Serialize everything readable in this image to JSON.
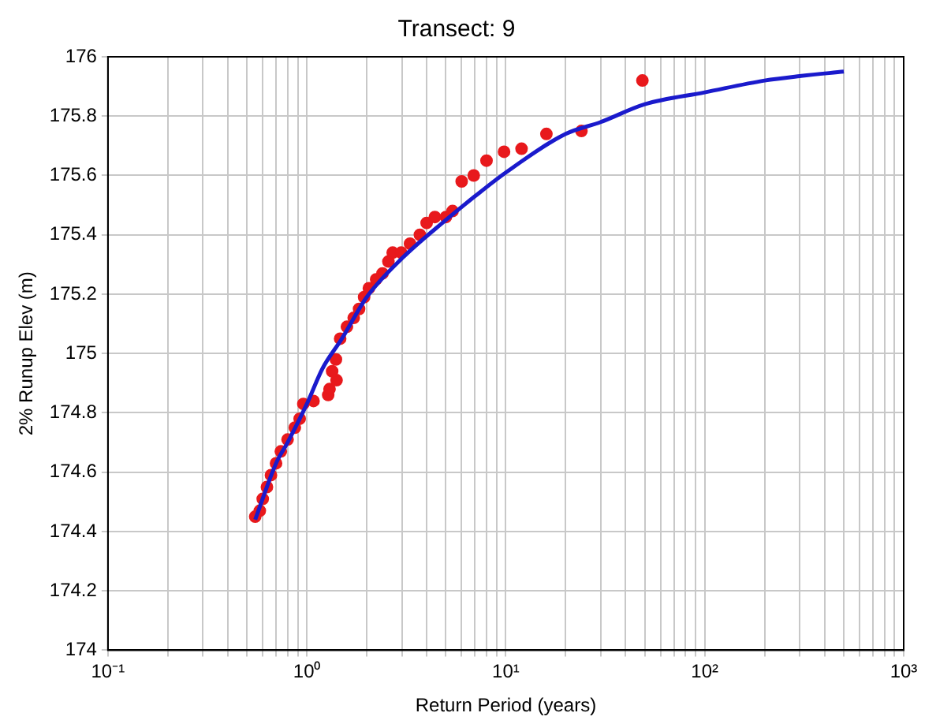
{
  "chart_data": {
    "type": "scatter",
    "title": "Transect: 9",
    "xlabel": "Return Period (years)",
    "ylabel": "2% Runup Elev (m)",
    "log": "x",
    "grid": true,
    "legend": false,
    "marker": "circle",
    "xlim": [
      0.1,
      1000
    ],
    "ylim": [
      174,
      176
    ],
    "xticks": [
      {
        "value": 0.1,
        "label": "10⁻¹"
      },
      {
        "value": 0.2,
        "label": null
      },
      {
        "value": 0.3,
        "label": null
      },
      {
        "value": 0.4,
        "label": null
      },
      {
        "value": 0.5,
        "label": null
      },
      {
        "value": 0.6,
        "label": null
      },
      {
        "value": 0.7,
        "label": null
      },
      {
        "value": 0.8,
        "label": null
      },
      {
        "value": 0.9,
        "label": null
      },
      {
        "value": 1,
        "label": "10⁰"
      },
      {
        "value": 2,
        "label": null
      },
      {
        "value": 3,
        "label": null
      },
      {
        "value": 4,
        "label": null
      },
      {
        "value": 5,
        "label": null
      },
      {
        "value": 6,
        "label": null
      },
      {
        "value": 7,
        "label": null
      },
      {
        "value": 8,
        "label": null
      },
      {
        "value": 9,
        "label": null
      },
      {
        "value": 10,
        "label": "10¹"
      },
      {
        "value": 20,
        "label": null
      },
      {
        "value": 30,
        "label": null
      },
      {
        "value": 40,
        "label": null
      },
      {
        "value": 50,
        "label": null
      },
      {
        "value": 60,
        "label": null
      },
      {
        "value": 70,
        "label": null
      },
      {
        "value": 80,
        "label": null
      },
      {
        "value": 90,
        "label": null
      },
      {
        "value": 100,
        "label": "10²"
      },
      {
        "value": 200,
        "label": null
      },
      {
        "value": 300,
        "label": null
      },
      {
        "value": 400,
        "label": null
      },
      {
        "value": 500,
        "label": null
      },
      {
        "value": 600,
        "label": null
      },
      {
        "value": 700,
        "label": null
      },
      {
        "value": 800,
        "label": null
      },
      {
        "value": 900,
        "label": null
      },
      {
        "value": 1000,
        "label": "10³"
      }
    ],
    "yticks": [
      174,
      174.2,
      174.4,
      174.6,
      174.8,
      175,
      175.2,
      175.4,
      175.6,
      175.8,
      176
    ],
    "series": [
      {
        "color": "#e8191c",
        "x": [
          0.55,
          0.58,
          0.6,
          0.63,
          0.66,
          0.7,
          0.74,
          0.8,
          0.87,
          0.92,
          0.96,
          1.08,
          1.28,
          1.3,
          1.41,
          1.34,
          1.4,
          1.47,
          1.59,
          1.72,
          1.83,
          1.94,
          2.05,
          2.23,
          2.4,
          2.57,
          2.7,
          2.98,
          3.3,
          3.7,
          4.0,
          4.4,
          5.0,
          5.4,
          6.0,
          6.9,
          8.0,
          9.8,
          12,
          16,
          24,
          48.6
        ],
        "values": [
          174.45,
          174.47,
          174.51,
          174.55,
          174.59,
          174.63,
          174.67,
          174.71,
          174.75,
          174.78,
          174.83,
          174.84,
          174.86,
          174.88,
          174.91,
          174.94,
          174.98,
          175.05,
          175.09,
          175.12,
          175.15,
          175.19,
          175.22,
          175.25,
          175.27,
          175.31,
          175.34,
          175.34,
          175.37,
          175.4,
          175.44,
          175.46,
          175.46,
          175.48,
          175.58,
          175.6,
          175.65,
          175.68,
          175.69,
          175.74,
          175.75,
          175.92
        ]
      },
      {
        "type": "line",
        "color": "#1a1acc",
        "marker": "none",
        "x": [
          0.55,
          0.7,
          0.8,
          1,
          1.2,
          1.5,
          2,
          3,
          5,
          7,
          10,
          20,
          30,
          50,
          100,
          200,
          300,
          500
        ],
        "values": [
          174.44,
          174.63,
          174.7,
          174.83,
          174.95,
          175.05,
          175.19,
          175.32,
          175.45,
          175.53,
          175.61,
          175.74,
          175.78,
          175.84,
          175.88,
          175.92,
          175.935,
          175.95
        ]
      }
    ]
  }
}
